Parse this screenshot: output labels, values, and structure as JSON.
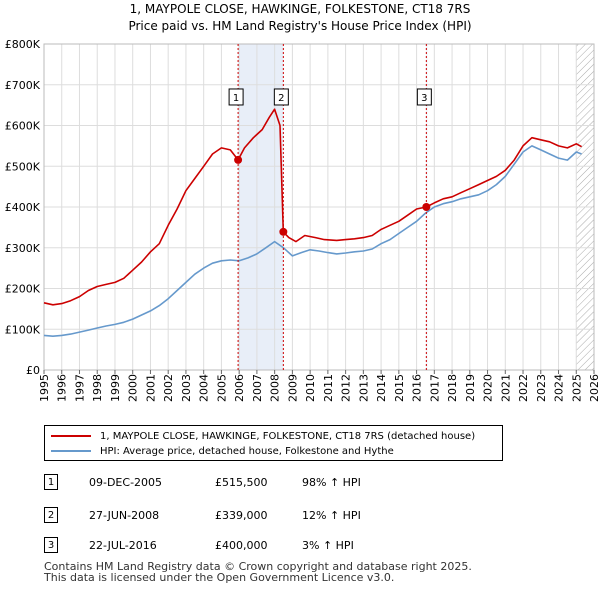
{
  "chart_data": {
    "type": "line",
    "title": "1, MAYPOLE CLOSE, HAWKINGE, FOLKESTONE, CT18 7RS",
    "subtitle": "Price paid vs. HM Land Registry's House Price Index (HPI)",
    "xlim": [
      1995,
      2026
    ],
    "ylim": [
      0,
      800000
    ],
    "x_ticks": [
      "1995",
      "1996",
      "1997",
      "1998",
      "1999",
      "2000",
      "2001",
      "2002",
      "2003",
      "2004",
      "2005",
      "2006",
      "2007",
      "2008",
      "2009",
      "2010",
      "2011",
      "2012",
      "2013",
      "2014",
      "2015",
      "2016",
      "2017",
      "2018",
      "2019",
      "2020",
      "2021",
      "2022",
      "2023",
      "2024",
      "2025",
      "2026"
    ],
    "y_ticks": [
      {
        "value": 0,
        "label": "£0"
      },
      {
        "value": 100000,
        "label": "£100K"
      },
      {
        "value": 200000,
        "label": "£200K"
      },
      {
        "value": 300000,
        "label": "£300K"
      },
      {
        "value": 400000,
        "label": "£400K"
      },
      {
        "value": 500000,
        "label": "£500K"
      },
      {
        "value": 600000,
        "label": "£600K"
      },
      {
        "value": 700000,
        "label": "£700K"
      },
      {
        "value": 800000,
        "label": "£800K"
      }
    ],
    "shaded_periods": [
      {
        "from": 2005.94,
        "to": 2008.49
      },
      {
        "from": 2016.55,
        "to": 2016.6
      },
      {
        "from": 2025.0,
        "to": 2026.0,
        "hatched": true
      }
    ],
    "series": [
      {
        "name": "1, MAYPOLE CLOSE, HAWKINGE, FOLKESTONE, CT18 7RS (detached house)",
        "color": "#cc0000",
        "points": [
          [
            1995.0,
            165000
          ],
          [
            1995.5,
            160000
          ],
          [
            1996.0,
            163000
          ],
          [
            1996.5,
            170000
          ],
          [
            1997.0,
            180000
          ],
          [
            1997.5,
            195000
          ],
          [
            1998.0,
            205000
          ],
          [
            1998.5,
            210000
          ],
          [
            1999.0,
            215000
          ],
          [
            1999.5,
            225000
          ],
          [
            2000.0,
            245000
          ],
          [
            2000.5,
            265000
          ],
          [
            2001.0,
            290000
          ],
          [
            2001.5,
            310000
          ],
          [
            2002.0,
            355000
          ],
          [
            2002.5,
            395000
          ],
          [
            2003.0,
            440000
          ],
          [
            2003.5,
            470000
          ],
          [
            2004.0,
            500000
          ],
          [
            2004.5,
            530000
          ],
          [
            2005.0,
            545000
          ],
          [
            2005.5,
            540000
          ],
          [
            2005.94,
            515500
          ],
          [
            2006.3,
            545000
          ],
          [
            2006.8,
            570000
          ],
          [
            2007.3,
            590000
          ],
          [
            2007.7,
            620000
          ],
          [
            2008.0,
            640000
          ],
          [
            2008.3,
            600000
          ],
          [
            2008.49,
            339000
          ],
          [
            2008.8,
            325000
          ],
          [
            2009.2,
            315000
          ],
          [
            2009.7,
            330000
          ],
          [
            2010.3,
            325000
          ],
          [
            2010.8,
            320000
          ],
          [
            2011.5,
            318000
          ],
          [
            2012.0,
            320000
          ],
          [
            2012.5,
            322000
          ],
          [
            2013.0,
            325000
          ],
          [
            2013.5,
            330000
          ],
          [
            2014.0,
            345000
          ],
          [
            2014.5,
            355000
          ],
          [
            2015.0,
            365000
          ],
          [
            2015.5,
            380000
          ],
          [
            2016.0,
            395000
          ],
          [
            2016.55,
            400000
          ],
          [
            2017.0,
            410000
          ],
          [
            2017.5,
            420000
          ],
          [
            2018.0,
            425000
          ],
          [
            2018.5,
            435000
          ],
          [
            2019.0,
            445000
          ],
          [
            2019.5,
            455000
          ],
          [
            2020.0,
            465000
          ],
          [
            2020.5,
            475000
          ],
          [
            2021.0,
            490000
          ],
          [
            2021.5,
            515000
          ],
          [
            2022.0,
            550000
          ],
          [
            2022.5,
            570000
          ],
          [
            2023.0,
            565000
          ],
          [
            2023.5,
            560000
          ],
          [
            2024.0,
            550000
          ],
          [
            2024.5,
            545000
          ],
          [
            2025.0,
            555000
          ],
          [
            2025.3,
            548000
          ]
        ]
      },
      {
        "name": "HPI: Average price, detached house, Folkestone and Hythe",
        "color": "#6699cc",
        "points": [
          [
            1995.0,
            85000
          ],
          [
            1995.5,
            83000
          ],
          [
            1996.0,
            85000
          ],
          [
            1996.5,
            88000
          ],
          [
            1997.0,
            93000
          ],
          [
            1997.5,
            98000
          ],
          [
            1998.0,
            103000
          ],
          [
            1998.5,
            108000
          ],
          [
            1999.0,
            112000
          ],
          [
            1999.5,
            117000
          ],
          [
            2000.0,
            125000
          ],
          [
            2000.5,
            135000
          ],
          [
            2001.0,
            145000
          ],
          [
            2001.5,
            158000
          ],
          [
            2002.0,
            175000
          ],
          [
            2002.5,
            195000
          ],
          [
            2003.0,
            215000
          ],
          [
            2003.5,
            235000
          ],
          [
            2004.0,
            250000
          ],
          [
            2004.5,
            262000
          ],
          [
            2005.0,
            268000
          ],
          [
            2005.5,
            270000
          ],
          [
            2006.0,
            268000
          ],
          [
            2006.5,
            275000
          ],
          [
            2007.0,
            285000
          ],
          [
            2007.5,
            300000
          ],
          [
            2008.0,
            315000
          ],
          [
            2008.5,
            300000
          ],
          [
            2009.0,
            280000
          ],
          [
            2009.5,
            288000
          ],
          [
            2010.0,
            295000
          ],
          [
            2010.5,
            292000
          ],
          [
            2011.0,
            288000
          ],
          [
            2011.5,
            285000
          ],
          [
            2012.0,
            287000
          ],
          [
            2012.5,
            290000
          ],
          [
            2013.0,
            292000
          ],
          [
            2013.5,
            297000
          ],
          [
            2014.0,
            310000
          ],
          [
            2014.5,
            320000
          ],
          [
            2015.0,
            335000
          ],
          [
            2015.5,
            350000
          ],
          [
            2016.0,
            365000
          ],
          [
            2016.5,
            385000
          ],
          [
            2017.0,
            400000
          ],
          [
            2017.5,
            408000
          ],
          [
            2018.0,
            413000
          ],
          [
            2018.5,
            420000
          ],
          [
            2019.0,
            425000
          ],
          [
            2019.5,
            430000
          ],
          [
            2020.0,
            440000
          ],
          [
            2020.5,
            455000
          ],
          [
            2021.0,
            475000
          ],
          [
            2021.5,
            505000
          ],
          [
            2022.0,
            535000
          ],
          [
            2022.5,
            550000
          ],
          [
            2023.0,
            540000
          ],
          [
            2023.5,
            530000
          ],
          [
            2024.0,
            520000
          ],
          [
            2024.5,
            515000
          ],
          [
            2025.0,
            535000
          ],
          [
            2025.3,
            530000
          ]
        ]
      }
    ],
    "sale_markers": [
      {
        "label": "1",
        "x": 2005.94,
        "y": 515500,
        "box_y": 670000
      },
      {
        "label": "2",
        "x": 2008.49,
        "y": 339000,
        "box_y": 670000
      },
      {
        "label": "3",
        "x": 2016.55,
        "y": 400000,
        "box_y": 670000
      }
    ],
    "legend": {
      "entries": [
        {
          "label": "1, MAYPOLE CLOSE, HAWKINGE, FOLKESTONE, CT18 7RS (detached house)",
          "color": "#cc0000"
        },
        {
          "label": "HPI: Average price, detached house, Folkestone and Hythe",
          "color": "#6699cc"
        }
      ]
    }
  },
  "transactions": [
    {
      "num": "1",
      "date": "09-DEC-2005",
      "price": "£515,500",
      "hpi": "98% ↑ HPI"
    },
    {
      "num": "2",
      "date": "27-JUN-2008",
      "price": "£339,000",
      "hpi": "12% ↑ HPI"
    },
    {
      "num": "3",
      "date": "22-JUL-2016",
      "price": "£400,000",
      "hpi": "3% ↑ HPI"
    }
  ],
  "footer": {
    "line1": "Contains HM Land Registry data © Crown copyright and database right 2025.",
    "line2": "This data is licensed under the Open Government Licence v3.0."
  },
  "colors": {
    "shade": "#e8eef8",
    "grid": "#dddddd",
    "marker_line": "#cc0000"
  }
}
